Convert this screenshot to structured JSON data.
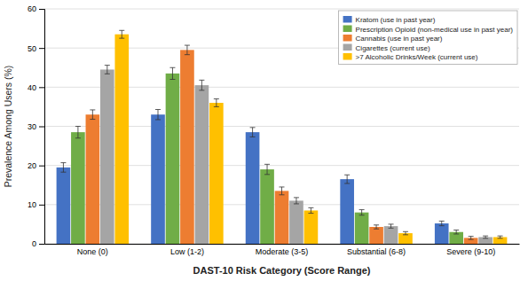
{
  "chart_data": {
    "type": "bar",
    "categories": [
      "None (0)",
      "Low (1-2)",
      "Moderate (3-5)",
      "Substantial (6-8)",
      "Severe (9-10)"
    ],
    "series": [
      {
        "name": "Kratom  (use in past year)",
        "color": "#4472C4",
        "values": [
          19.5,
          33.0,
          28.5,
          16.5,
          5.2
        ],
        "errors": [
          1.2,
          1.3,
          1.2,
          1.1,
          0.6
        ]
      },
      {
        "name": "Prescription Opioid (non-medical use in past year)",
        "color": "#70AD47",
        "values": [
          28.5,
          43.5,
          19.0,
          8.0,
          3.0
        ],
        "errors": [
          1.5,
          1.5,
          1.3,
          0.7,
          0.5
        ]
      },
      {
        "name": "Cannabis  (use in past year)",
        "color": "#ED7D31",
        "values": [
          33.0,
          49.5,
          13.5,
          4.3,
          1.5
        ],
        "errors": [
          1.2,
          1.2,
          1.0,
          0.5,
          0.4
        ]
      },
      {
        "name": "Cigarettes  (current use)",
        "color": "#A5A5A5",
        "values": [
          44.5,
          40.5,
          11.0,
          4.5,
          1.7
        ],
        "errors": [
          1.1,
          1.3,
          0.8,
          0.5,
          0.3
        ]
      },
      {
        "name": ">7 Alcoholic Drinks/Week  (current use)",
        "color": "#FFC000",
        "values": [
          53.5,
          36.0,
          8.5,
          2.7,
          1.7
        ],
        "errors": [
          1.0,
          1.0,
          0.7,
          0.4,
          0.3
        ]
      }
    ],
    "xlabel": "DAST-10 Risk Category (Score Range)",
    "ylabel": "Prevalence Among Users (%)",
    "ylim": [
      0,
      60
    ],
    "yticks": [
      0,
      10,
      20,
      30,
      40,
      50,
      60
    ],
    "grid": true,
    "legend": "upper right"
  }
}
